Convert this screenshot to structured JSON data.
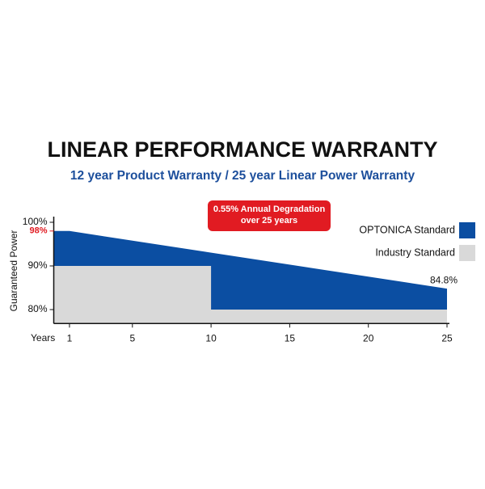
{
  "chart_data": {
    "type": "area",
    "title": "LINEAR PERFORMANCE WARRANTY",
    "subtitle": "12 year Product Warranty / 25 year Linear Power Warranty",
    "x_label": "Years",
    "y_label": "Guaranteed Power",
    "annotation": [
      "0.55% Annual Degradation",
      "over 25 years"
    ],
    "xlim": [
      0,
      25
    ],
    "xticks": [
      1,
      5,
      10,
      15,
      20,
      25
    ],
    "ylim": [
      76.8,
      100
    ],
    "yticks": [
      {
        "value": 80,
        "label": "80%"
      },
      {
        "value": 90,
        "label": "90%"
      },
      {
        "value": 100,
        "label": "100%"
      }
    ],
    "highlight_tick": {
      "value": 98,
      "label": "98%",
      "color": "#e11b22"
    },
    "legend": "upper right",
    "series": [
      {
        "name": "OPTONICA Standard",
        "color": "#0b4ea2",
        "x": [
          0,
          1,
          25
        ],
        "values": [
          98,
          98,
          84.8
        ],
        "value_labels": [
          null,
          null,
          "84.8%"
        ]
      },
      {
        "name": "Industry Standard",
        "color": "#d9d9d9",
        "x": [
          0,
          10,
          10,
          25
        ],
        "values": [
          90,
          90,
          80,
          80
        ]
      }
    ]
  }
}
